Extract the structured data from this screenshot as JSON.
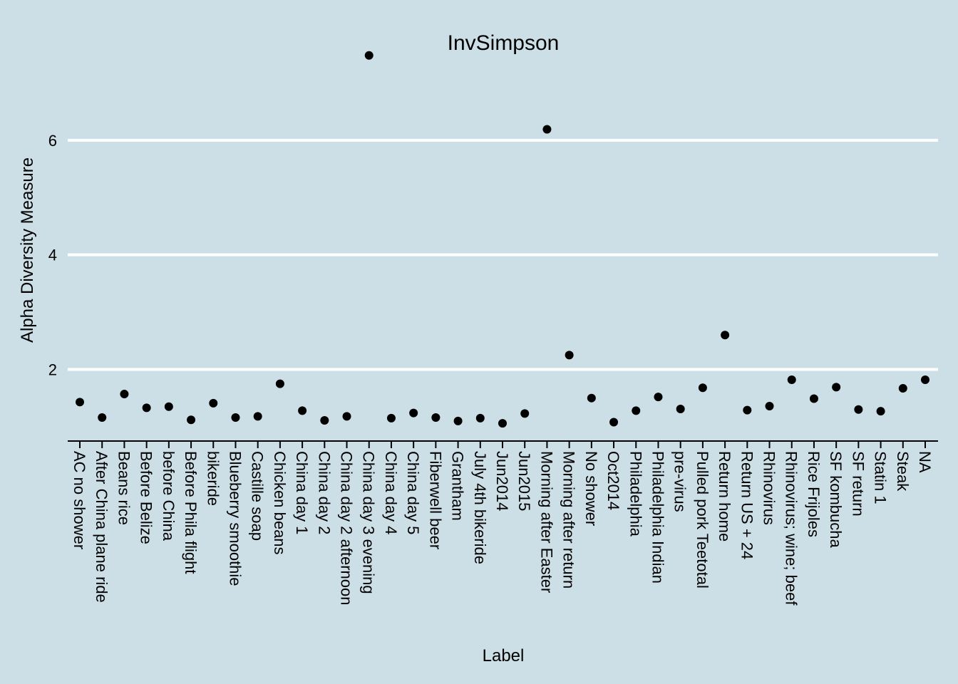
{
  "chart_data": {
    "type": "scatter",
    "title": "InvSimpson",
    "xlabel": "Label",
    "ylabel": "Alpha Diversity Measure",
    "ylim": [
      0.75,
      7.95
    ],
    "yticks": [
      2,
      4,
      6
    ],
    "grid": "horizontal major lines at y ticks",
    "background_color": "#cddfe6",
    "grid_color": "#ffffff",
    "point_color": "#000000",
    "categories": [
      "AC no shower",
      "After China plane ride",
      "Beans rice",
      "Before Belize",
      "before China",
      "Before Phila flight",
      "bikeride",
      "Blueberry smoothie",
      "Castille soap",
      "Chicken beans",
      "China day 1",
      "China day 2",
      "China day 2 afternoon",
      "China day 3 evening",
      "China day 4",
      "China day 5",
      "Fiberwell beer",
      "Grantham",
      "July 4th bikeride",
      "Jun2014",
      "Jun2015",
      "Morning after Easter",
      "Morning after return",
      "No shower",
      "Oct2014",
      "Philadelphia",
      "Philadelphia Indian",
      "pre-virus",
      "Pulled pork Teetotal",
      "Return home",
      "Return US + 24",
      "Rhinovirus",
      "Rhinovirus; wine; beef",
      "Rice Frijoles",
      "SF kombucha",
      "SF return",
      "Statin 1",
      "Steak",
      "NA"
    ],
    "values": [
      1.43,
      1.16,
      1.57,
      1.33,
      1.35,
      1.12,
      1.41,
      1.16,
      1.18,
      1.75,
      1.28,
      1.11,
      1.18,
      7.48,
      1.15,
      1.24,
      1.16,
      1.1,
      1.15,
      1.06,
      1.23,
      6.19,
      2.25,
      1.5,
      1.08,
      1.28,
      1.52,
      1.31,
      1.68,
      2.6,
      1.29,
      1.36,
      1.82,
      1.49,
      1.69,
      1.3,
      1.27,
      1.67,
      1.82
    ]
  }
}
